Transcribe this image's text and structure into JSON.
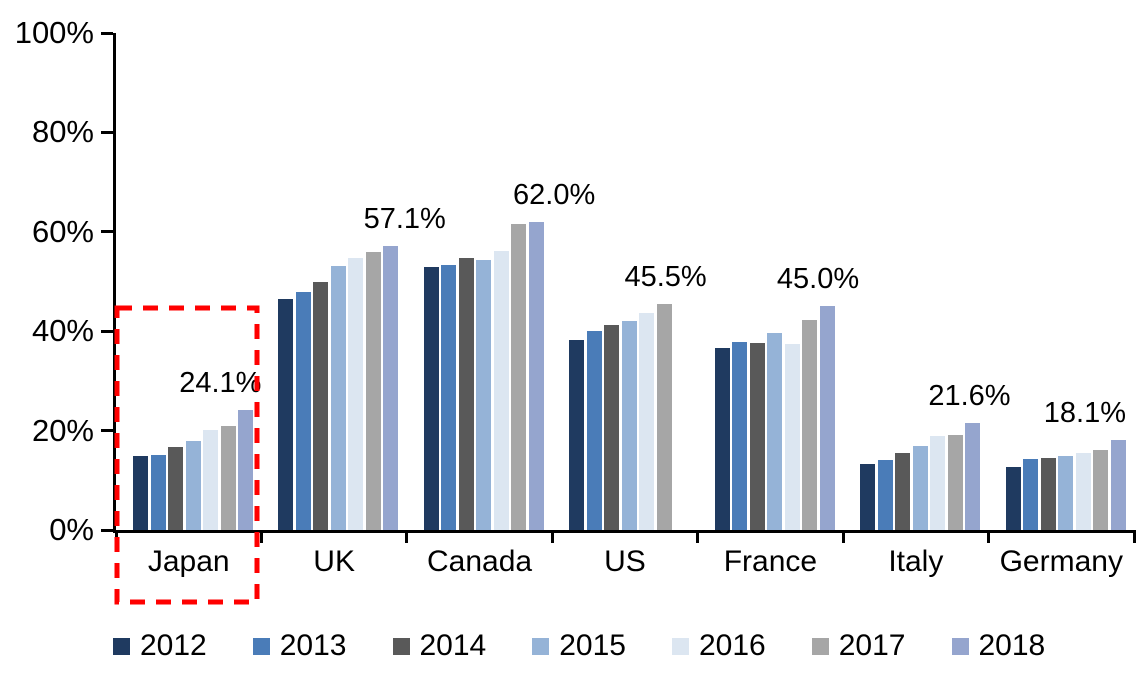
{
  "chart_data": {
    "type": "bar",
    "title": "",
    "xlabel": "",
    "ylabel": "",
    "categories": [
      "Japan",
      "UK",
      "Canada",
      "US",
      "France",
      "Italy",
      "Germany"
    ],
    "series": [
      {
        "name": "2012",
        "color": "#1F3A60",
        "values": [
          14.8,
          46.4,
          53.0,
          38.3,
          36.6,
          13.3,
          12.6
        ]
      },
      {
        "name": "2013",
        "color": "#4A7CB8",
        "values": [
          15.1,
          47.8,
          53.3,
          40.1,
          37.8,
          14.1,
          14.2
        ]
      },
      {
        "name": "2014",
        "color": "#595959",
        "values": [
          16.7,
          50.0,
          54.8,
          41.2,
          37.7,
          15.4,
          14.4
        ]
      },
      {
        "name": "2015",
        "color": "#95B3D7",
        "values": [
          18.0,
          53.1,
          54.4,
          42.1,
          39.6,
          16.9,
          14.9
        ]
      },
      {
        "name": "2016",
        "color": "#DCE6F1",
        "values": [
          20.1,
          54.8,
          56.1,
          43.6,
          37.5,
          18.9,
          15.4
        ]
      },
      {
        "name": "2017",
        "color": "#A6A6A6",
        "values": [
          21.0,
          55.9,
          61.5,
          45.5,
          42.3,
          19.1,
          16.0
        ]
      },
      {
        "name": "2018",
        "color": "#95A5CE",
        "values": [
          24.1,
          57.1,
          62.0,
          null,
          45.0,
          21.6,
          18.1
        ]
      }
    ],
    "data_labels": [
      "24.1%",
      "57.1%",
      "62.0%",
      "45.5%",
      "45.0%",
      "21.6%",
      "18.1%"
    ],
    "y_axis": {
      "tick_labels": [
        "0%",
        "20%",
        "40%",
        "60%",
        "80%",
        "100%"
      ],
      "min": 0,
      "max": 100
    },
    "grid": "off",
    "legend_position": "bottom",
    "legend_entries": [
      "2012",
      "2013",
      "2014",
      "2015",
      "2016",
      "2017",
      "2018"
    ],
    "highlight": {
      "category": "Japan",
      "shape": "dashed-rectangle",
      "color": "#FF0000"
    }
  }
}
